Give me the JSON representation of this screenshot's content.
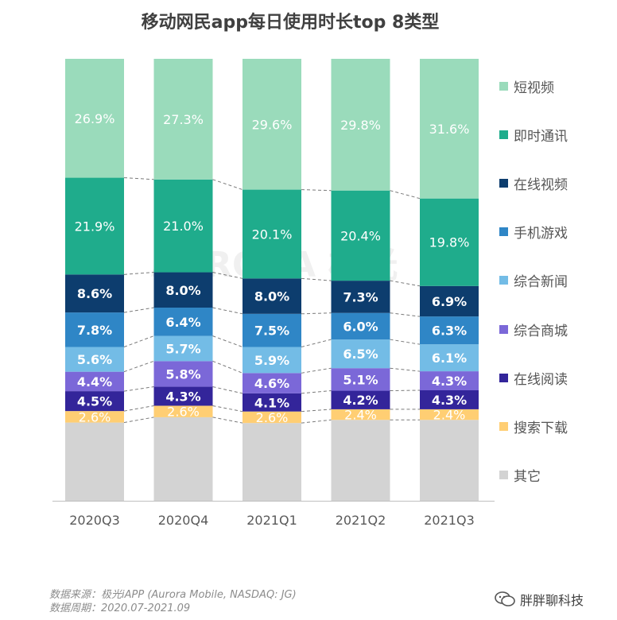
{
  "chart_data": {
    "type": "bar",
    "stacked": true,
    "normalized": true,
    "title": "移动网民app每日使用时长top 8类型",
    "categories": [
      "2020Q3",
      "2020Q4",
      "2021Q1",
      "2021Q2",
      "2021Q3"
    ],
    "series": [
      {
        "name": "其它",
        "color": "#d3d3d3",
        "values": [
          null,
          null,
          null,
          null,
          null
        ],
        "labels": [
          "",
          "",
          "",
          "",
          ""
        ]
      },
      {
        "name": "搜索下载",
        "color": "#ffce73",
        "values": [
          2.6,
          2.6,
          2.6,
          2.4,
          2.4
        ],
        "labels": [
          "2.6%",
          "2.6%",
          "2.6%",
          "2.4%",
          "2.4%"
        ]
      },
      {
        "name": "在线阅读",
        "color": "#33259a",
        "values": [
          4.5,
          4.3,
          4.1,
          4.2,
          4.3
        ],
        "labels": [
          "4.5%",
          "4.3%",
          "4.1%",
          "4.2%",
          "4.3%"
        ]
      },
      {
        "name": "综合商城",
        "color": "#7b68d8",
        "values": [
          4.4,
          5.8,
          4.6,
          5.1,
          4.3
        ],
        "labels": [
          "4.4%",
          "5.8%",
          "4.6%",
          "5.1%",
          "4.3%"
        ]
      },
      {
        "name": "综合新闻",
        "color": "#73bce6",
        "values": [
          5.6,
          5.7,
          5.9,
          6.5,
          6.1
        ],
        "labels": [
          "5.6%",
          "5.7%",
          "5.9%",
          "6.5%",
          "6.1%"
        ]
      },
      {
        "name": "手机游戏",
        "color": "#2f86c6",
        "values": [
          7.8,
          6.4,
          7.5,
          6.0,
          6.3
        ],
        "labels": [
          "7.8%",
          "6.4%",
          "7.5%",
          "6.0%",
          "6.3%"
        ]
      },
      {
        "name": "在线视频",
        "color": "#0d3d6e",
        "values": [
          8.6,
          8.0,
          8.0,
          7.3,
          6.9
        ],
        "labels": [
          "8.6%",
          "8.0%",
          "8.0%",
          "7.3%",
          "6.9%"
        ]
      },
      {
        "name": "即时通讯",
        "color": "#1fac8c",
        "values": [
          21.9,
          21.0,
          20.1,
          20.4,
          19.8
        ],
        "labels": [
          "21.9%",
          "21.0%",
          "20.1%",
          "20.4%",
          "19.8%"
        ]
      },
      {
        "name": "短视频",
        "color": "#9adbbb",
        "values": [
          26.9,
          27.3,
          29.6,
          29.8,
          31.6
        ],
        "labels": [
          "26.9%",
          "27.3%",
          "29.6%",
          "29.8%",
          "31.6%"
        ]
      }
    ],
    "legend_order": [
      "短视频",
      "即时通讯",
      "在线视频",
      "手机游戏",
      "综合新闻",
      "综合商城",
      "在线阅读",
      "搜索下载",
      "其它"
    ],
    "legend_position": "right",
    "grid": false,
    "connector_lines": "dashed"
  },
  "footer": {
    "source_line": "数据来源：极光iAPP (Aurora Mobile, NASDAQ: JG)",
    "period_line": "数据周期：2020.07-2021.09"
  },
  "watermark": {
    "text": "AURORA 极光"
  },
  "badge": {
    "text": "胖胖聊科技",
    "icon": "wechat-icon"
  }
}
